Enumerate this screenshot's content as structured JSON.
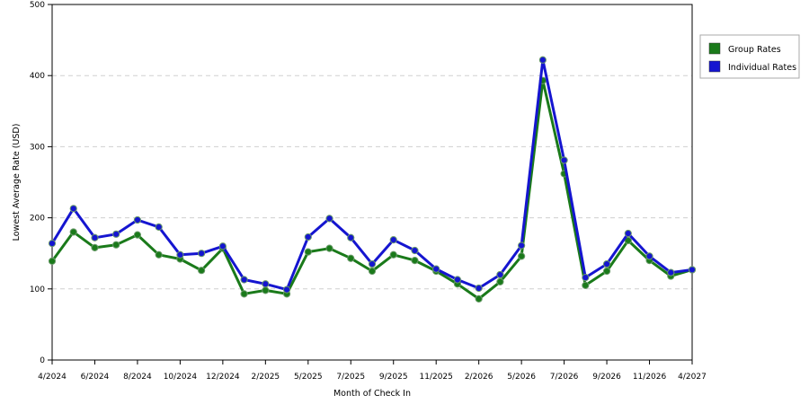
{
  "chart_data": {
    "type": "line",
    "title": "",
    "xlabel": "Month of Check In",
    "ylabel": "Lowest Average Rate (USD)",
    "ylim": [
      0,
      500
    ],
    "yticks": [
      0,
      100,
      200,
      300,
      400,
      500
    ],
    "grid": "horizontal dashed",
    "legend": "right",
    "x": [
      "4/2024",
      "5/2024",
      "6/2024",
      "7/2024",
      "8/2024",
      "9/2024",
      "10/2024",
      "11/2024",
      "12/2024",
      "1/2025",
      "2/2025",
      "3/2025",
      "5/2025",
      "6/2025",
      "7/2025",
      "8/2025",
      "9/2025",
      "10/2025",
      "11/2025",
      "12/2025",
      "2/2026",
      "3/2026",
      "5/2026",
      "6/2026",
      "7/2026",
      "8/2026",
      "9/2026",
      "10/2026",
      "11/2026",
      "12/2026",
      "4/2027"
    ],
    "xtick_labels": [
      "4/2024",
      "6/2024",
      "8/2024",
      "10/2024",
      "12/2024",
      "2/2025",
      "5/2025",
      "7/2025",
      "9/2025",
      "11/2025",
      "2/2026",
      "5/2026",
      "7/2026",
      "9/2026",
      "11/2026",
      "4/2027"
    ],
    "series": [
      {
        "name": "Group Rates",
        "color": "#1a7a1a",
        "values": [
          139,
          180,
          158,
          162,
          176,
          148,
          142,
          126,
          157,
          93,
          98,
          93,
          152,
          157,
          143,
          125,
          148,
          140,
          125,
          107,
          86,
          110,
          146,
          393,
          262,
          105,
          125,
          168,
          140,
          118,
          127
        ]
      },
      {
        "name": "Individual Rates",
        "color": "#1515d0",
        "values": [
          164,
          213,
          172,
          177,
          197,
          187,
          148,
          150,
          160,
          113,
          107,
          99,
          173,
          199,
          172,
          135,
          169,
          154,
          128,
          113,
          101,
          120,
          161,
          422,
          281,
          116,
          135,
          178,
          146,
          123,
          127
        ]
      }
    ]
  }
}
